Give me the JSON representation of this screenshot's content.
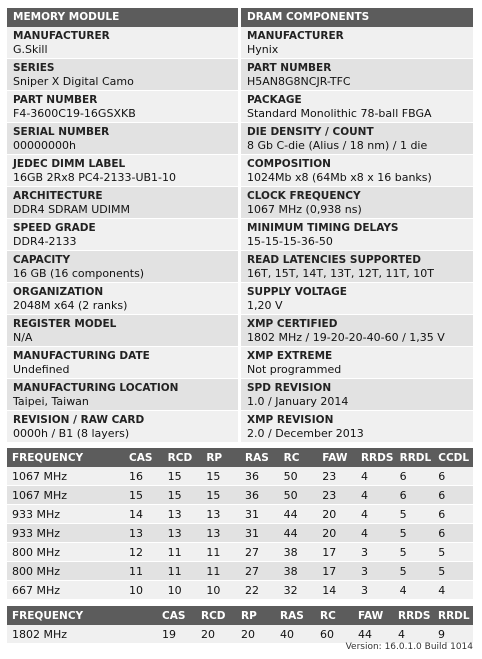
{
  "headers": {
    "left": "MEMORY MODULE",
    "right": "DRAM COMPONENTS"
  },
  "rows": [
    {
      "left_label": "MANUFACTURER",
      "left_value": "G.Skill",
      "right_label": "MANUFACTURER",
      "right_value": "Hynix"
    },
    {
      "left_label": "SERIES",
      "left_value": "Sniper X Digital Camo",
      "right_label": "PART NUMBER",
      "right_value": "H5AN8G8NCJR-TFC"
    },
    {
      "left_label": "PART NUMBER",
      "left_value": "F4-3600C19-16GSXKB",
      "right_label": "PACKAGE",
      "right_value": "Standard Monolithic 78-ball FBGA"
    },
    {
      "left_label": "SERIAL NUMBER",
      "left_value": "00000000h",
      "right_label": "DIE DENSITY / COUNT",
      "right_value": "8 Gb C-die (Alius / 18 nm) / 1 die"
    },
    {
      "left_label": "JEDEC DIMM LABEL",
      "left_value": "16GB 2Rx8 PC4-2133-UB1-10",
      "right_label": "COMPOSITION",
      "right_value": "1024Mb x8 (64Mb x8 x 16 banks)"
    },
    {
      "left_label": "ARCHITECTURE",
      "left_value": "DDR4 SDRAM UDIMM",
      "right_label": "CLOCK FREQUENCY",
      "right_value": "1067 MHz (0,938 ns)"
    },
    {
      "left_label": "SPEED GRADE",
      "left_value": "DDR4-2133",
      "right_label": "MINIMUM TIMING DELAYS",
      "right_value": "15-15-15-36-50"
    },
    {
      "left_label": "CAPACITY",
      "left_value": "16 GB (16 components)",
      "right_label": "READ LATENCIES SUPPORTED",
      "right_value": "16T, 15T, 14T, 13T, 12T, 11T, 10T"
    },
    {
      "left_label": "ORGANIZATION",
      "left_value": "2048M x64 (2 ranks)",
      "right_label": "SUPPLY VOLTAGE",
      "right_value": "1,20 V"
    },
    {
      "left_label": "REGISTER MODEL",
      "left_value": "N/A",
      "right_label": "XMP CERTIFIED",
      "right_value": "1802 MHz / 19-20-20-40-60 / 1,35 V"
    },
    {
      "left_label": "MANUFACTURING DATE",
      "left_value": "Undefined",
      "right_label": "XMP EXTREME",
      "right_value": "Not programmed"
    },
    {
      "left_label": "MANUFACTURING LOCATION",
      "left_value": "Taipei, Taiwan",
      "right_label": "SPD REVISION",
      "right_value": "1.0 / January 2014"
    },
    {
      "left_label": "REVISION / RAW CARD",
      "left_value": "0000h / B1 (8 layers)",
      "right_label": "XMP REVISION",
      "right_value": "2.0 / December 2013"
    }
  ],
  "timing_table": {
    "columns": [
      "FREQUENCY",
      "CAS",
      "RCD",
      "RP",
      "RAS",
      "RC",
      "FAW",
      "RRDS",
      "RRDL",
      "CCDL"
    ],
    "rows": [
      [
        "1067 MHz",
        "16",
        "15",
        "15",
        "36",
        "50",
        "23",
        "4",
        "6",
        "6"
      ],
      [
        "1067 MHz",
        "15",
        "15",
        "15",
        "36",
        "50",
        "23",
        "4",
        "6",
        "6"
      ],
      [
        "933 MHz",
        "14",
        "13",
        "13",
        "31",
        "44",
        "20",
        "4",
        "5",
        "6"
      ],
      [
        "933 MHz",
        "13",
        "13",
        "13",
        "31",
        "44",
        "20",
        "4",
        "5",
        "6"
      ],
      [
        "800 MHz",
        "12",
        "11",
        "11",
        "27",
        "38",
        "17",
        "3",
        "5",
        "5"
      ],
      [
        "800 MHz",
        "11",
        "11",
        "11",
        "27",
        "38",
        "17",
        "3",
        "5",
        "5"
      ],
      [
        "667 MHz",
        "10",
        "10",
        "10",
        "22",
        "32",
        "14",
        "3",
        "4",
        "4"
      ]
    ]
  },
  "xmp_table": {
    "columns": [
      "FREQUENCY",
      "CAS",
      "RCD",
      "RP",
      "RAS",
      "RC",
      "FAW",
      "RRDS",
      "RRDL"
    ],
    "rows": [
      [
        "1802 MHz",
        "19",
        "20",
        "20",
        "40",
        "60",
        "44",
        "4",
        "9"
      ]
    ]
  },
  "version": "Version: 16.0.1.0 Build 1014",
  "colors": {
    "header_bg": "#5c5c5c",
    "row_light": "#f0f0f0",
    "row_dark": "#e2e2e2"
  }
}
